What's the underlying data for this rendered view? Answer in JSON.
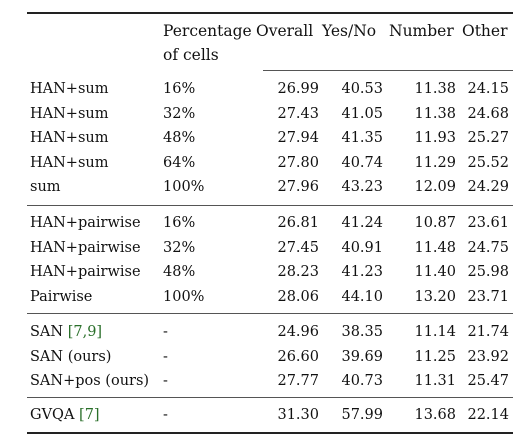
{
  "header": {
    "col_cells_line1": "Percentage",
    "col_cells_line2": "of cells",
    "col_overall": "Overall",
    "col_yesno": "Yes/No",
    "col_number": "Number",
    "col_other": "Other"
  },
  "groups": [
    {
      "rows": [
        {
          "method": "HAN+sum",
          "cells": "16%",
          "overall": "26.99",
          "yesno": "40.53",
          "number": "11.38",
          "other": "24.15"
        },
        {
          "method": "HAN+sum",
          "cells": "32%",
          "overall": "27.43",
          "yesno": "41.05",
          "number": "11.38",
          "other": "24.68"
        },
        {
          "method": "HAN+sum",
          "cells": "48%",
          "overall": "27.94",
          "yesno": "41.35",
          "number": "11.93",
          "other": "25.27"
        },
        {
          "method": "HAN+sum",
          "cells": "64%",
          "overall": "27.80",
          "yesno": "40.74",
          "number": "11.29",
          "other": "25.52"
        },
        {
          "method": "sum",
          "cells": "100%",
          "overall": "27.96",
          "yesno": "43.23",
          "number": "12.09",
          "other": "24.29"
        }
      ]
    },
    {
      "rows": [
        {
          "method": "HAN+pairwise",
          "cells": "16%",
          "overall": "26.81",
          "yesno": "41.24",
          "number": "10.87",
          "other": "23.61"
        },
        {
          "method": "HAN+pairwise",
          "cells": "32%",
          "overall": "27.45",
          "yesno": "40.91",
          "number": "11.48",
          "other": "24.75"
        },
        {
          "method": "HAN+pairwise",
          "cells": "48%",
          "overall": "28.23",
          "yesno": "41.23",
          "number": "11.40",
          "other": "25.98"
        },
        {
          "method": "Pairwise",
          "cells": "100%",
          "overall": "28.06",
          "yesno": "44.10",
          "number": "13.20",
          "other": "23.71"
        }
      ]
    },
    {
      "rows": [
        {
          "method": "SAN ",
          "cite": "[7,9]",
          "cells": "-",
          "overall": "24.96",
          "yesno": "38.35",
          "number": "11.14",
          "other": "21.74"
        },
        {
          "method": "SAN (ours)",
          "cells": "-",
          "overall": "26.60",
          "yesno": "39.69",
          "number": "11.25",
          "other": "23.92"
        },
        {
          "method": "SAN+pos (ours)",
          "cells": "-",
          "overall": "27.77",
          "yesno": "40.73",
          "number": "11.31",
          "other": "25.47"
        }
      ]
    },
    {
      "rows": [
        {
          "method": "GVQA ",
          "cite": "[7]",
          "cells": "-",
          "overall": "31.30",
          "yesno": "57.99",
          "number": "13.68",
          "other": "22.14"
        }
      ]
    }
  ]
}
